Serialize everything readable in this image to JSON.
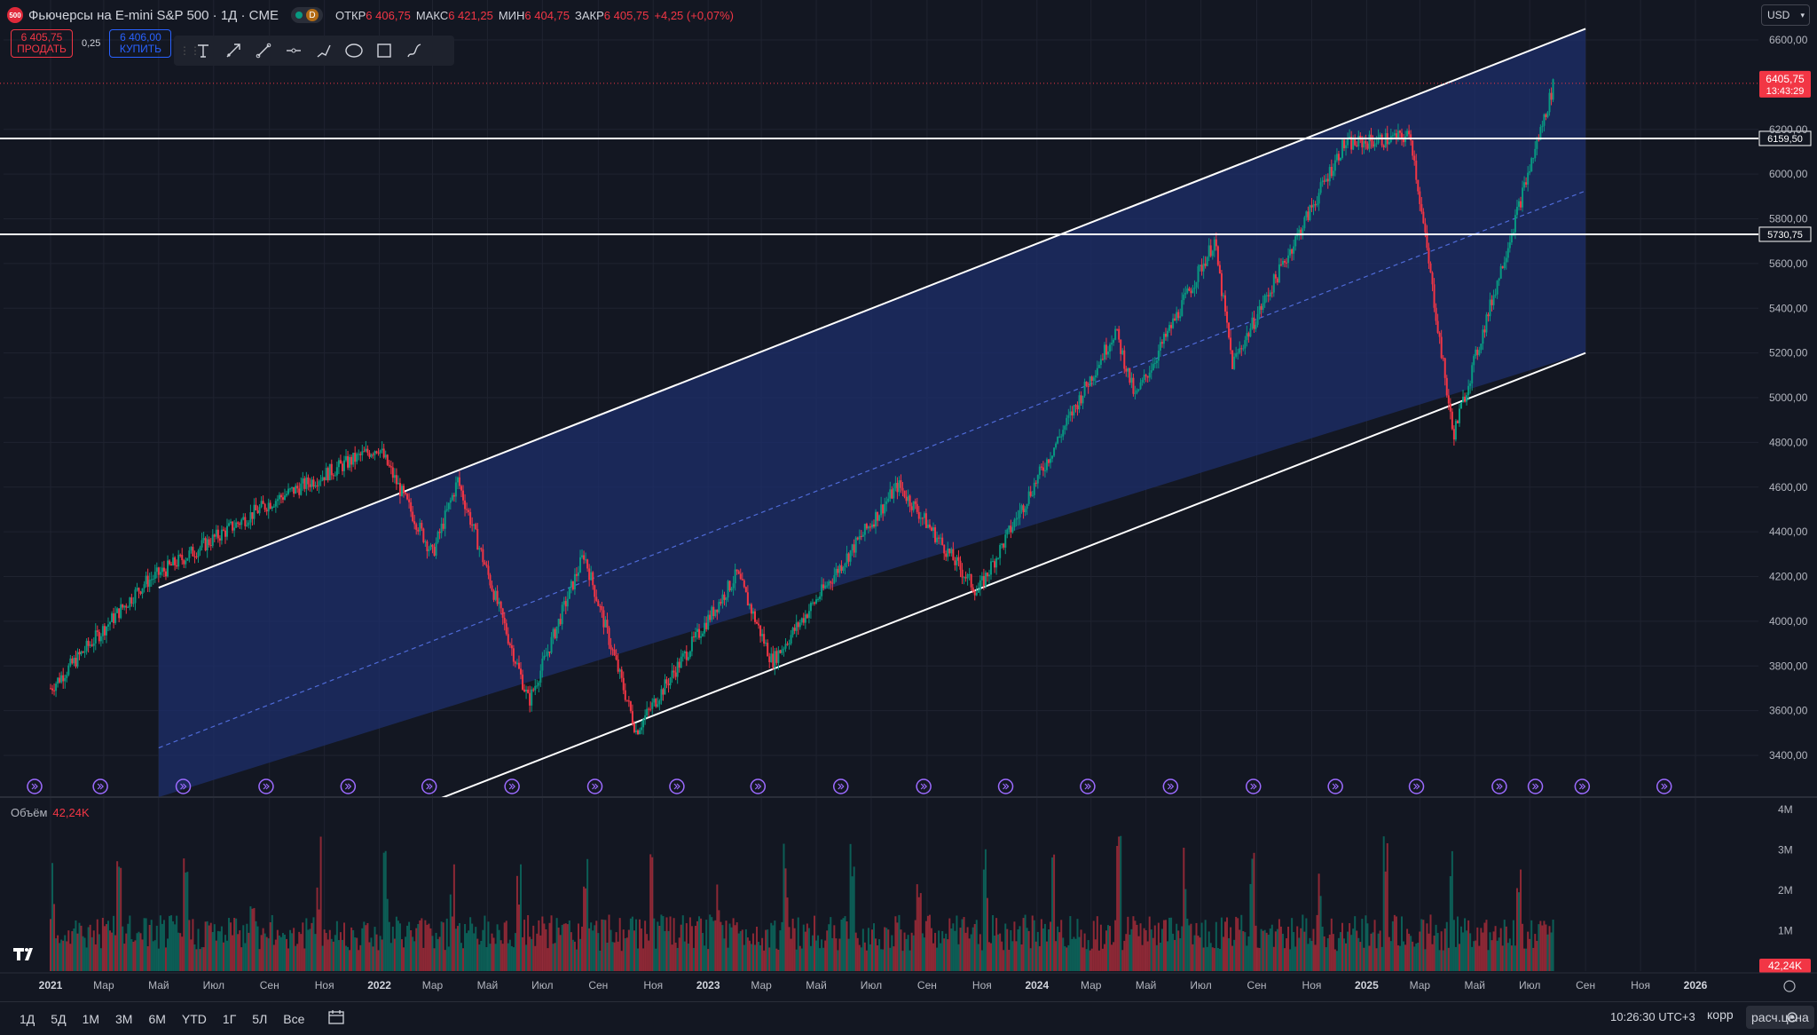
{
  "header": {
    "logo_text": "500",
    "symbol": "Фьючерсы на E-mini S&P 500 · 1Д · CME",
    "badge": "D",
    "open_label": "ОТКР",
    "open": "6 406,75",
    "high_label": "МАКС",
    "high": "6 421,25",
    "low_label": "МИН",
    "low": "6 404,75",
    "close_label": "ЗАКР",
    "close": "6 405,75",
    "change": "+4,25 (+0,07%)"
  },
  "trade": {
    "sell_price": "6 405,75",
    "sell_label": "ПРОДАТЬ",
    "spread": "0,25",
    "buy_price": "6 406,00",
    "buy_label": "КУПИТЬ"
  },
  "toolbar": {
    "icons": [
      "text-icon",
      "arrow-icon",
      "trend-line-icon",
      "horizontal-ray-icon",
      "path-icon",
      "ellipse-icon",
      "rectangle-icon",
      "brush-icon"
    ]
  },
  "currency": "USD",
  "price_axis": {
    "ticks": [
      "6600,00",
      "6200,00",
      "6000,00",
      "5800,00",
      "5600,00",
      "5400,00",
      "5200,00",
      "5000,00",
      "4800,00",
      "4600,00",
      "4400,00",
      "4200,00",
      "4000,00",
      "3800,00",
      "3600,00",
      "3400,00"
    ],
    "last_price": "6405,75",
    "countdown": "13:43:29",
    "level_1": "6159,50",
    "level_2": "5730,75"
  },
  "volume": {
    "label": "Объём",
    "value": "42,24K",
    "axis_ticks": [
      "4M",
      "3M",
      "2M",
      "1M"
    ],
    "last_label": "42,24K"
  },
  "time_axis": [
    "2021",
    "Мар",
    "Май",
    "Июл",
    "Сен",
    "Ноя",
    "2022",
    "Мар",
    "Май",
    "Июл",
    "Сен",
    "Ноя",
    "2023",
    "Мар",
    "Май",
    "Июл",
    "Сен",
    "Ноя",
    "2024",
    "Мар",
    "Май",
    "Июл",
    "Сен",
    "Ноя",
    "2025",
    "Мар",
    "Май",
    "Июл",
    "Сен",
    "Ноя",
    "2026"
  ],
  "ranges": [
    "1Д",
    "5Д",
    "1М",
    "3М",
    "6М",
    "YTD",
    "1Г",
    "5Л",
    "Все"
  ],
  "clock": "10:26:30 UTC+3",
  "adj_label": "корр",
  "calc_label": "расч.цена",
  "colors": {
    "up": "#089981",
    "down": "#f23645",
    "channel": "#1e2f6b",
    "accent": "#2962ff"
  },
  "chart_data": {
    "type": "candlestick",
    "interval": "1D",
    "ylim": [
      3300,
      6700
    ],
    "log_scale": false,
    "grid": true,
    "key_closes": [
      {
        "x": "2021-01-01",
        "y": 3700
      },
      {
        "x": "2021-04-15",
        "y": 4170
      },
      {
        "x": "2021-09-01",
        "y": 4530
      },
      {
        "x": "2021-12-31",
        "y": 4780
      },
      {
        "x": "2022-03-01",
        "y": 4300
      },
      {
        "x": "2022-03-29",
        "y": 4630
      },
      {
        "x": "2022-06-16",
        "y": 3640
      },
      {
        "x": "2022-08-16",
        "y": 4300
      },
      {
        "x": "2022-10-13",
        "y": 3510
      },
      {
        "x": "2023-02-02",
        "y": 4210
      },
      {
        "x": "2023-03-13",
        "y": 3820
      },
      {
        "x": "2023-07-31",
        "y": 4610
      },
      {
        "x": "2023-10-27",
        "y": 4130
      },
      {
        "x": "2024-03-28",
        "y": 5300
      },
      {
        "x": "2024-04-19",
        "y": 5000
      },
      {
        "x": "2024-07-16",
        "y": 5700
      },
      {
        "x": "2024-08-05",
        "y": 5150
      },
      {
        "x": "2024-12-06",
        "y": 6130
      },
      {
        "x": "2025-02-19",
        "y": 6170
      },
      {
        "x": "2025-04-07",
        "y": 4830
      },
      {
        "x": "2025-07-28",
        "y": 6405.75
      }
    ],
    "horizontal_levels": [
      6159.5,
      5730.75
    ],
    "channel": {
      "upper": [
        {
          "x": "2021-05-01",
          "y": 4150
        },
        {
          "x": "2025-09-01",
          "y": 6650
        }
      ],
      "lower": [
        {
          "x": "2022-04-25",
          "y": 3280
        },
        {
          "x": "2025-09-01",
          "y": 5200
        }
      ]
    },
    "volume_scale_max": 4000000,
    "last_volume": 42240
  }
}
